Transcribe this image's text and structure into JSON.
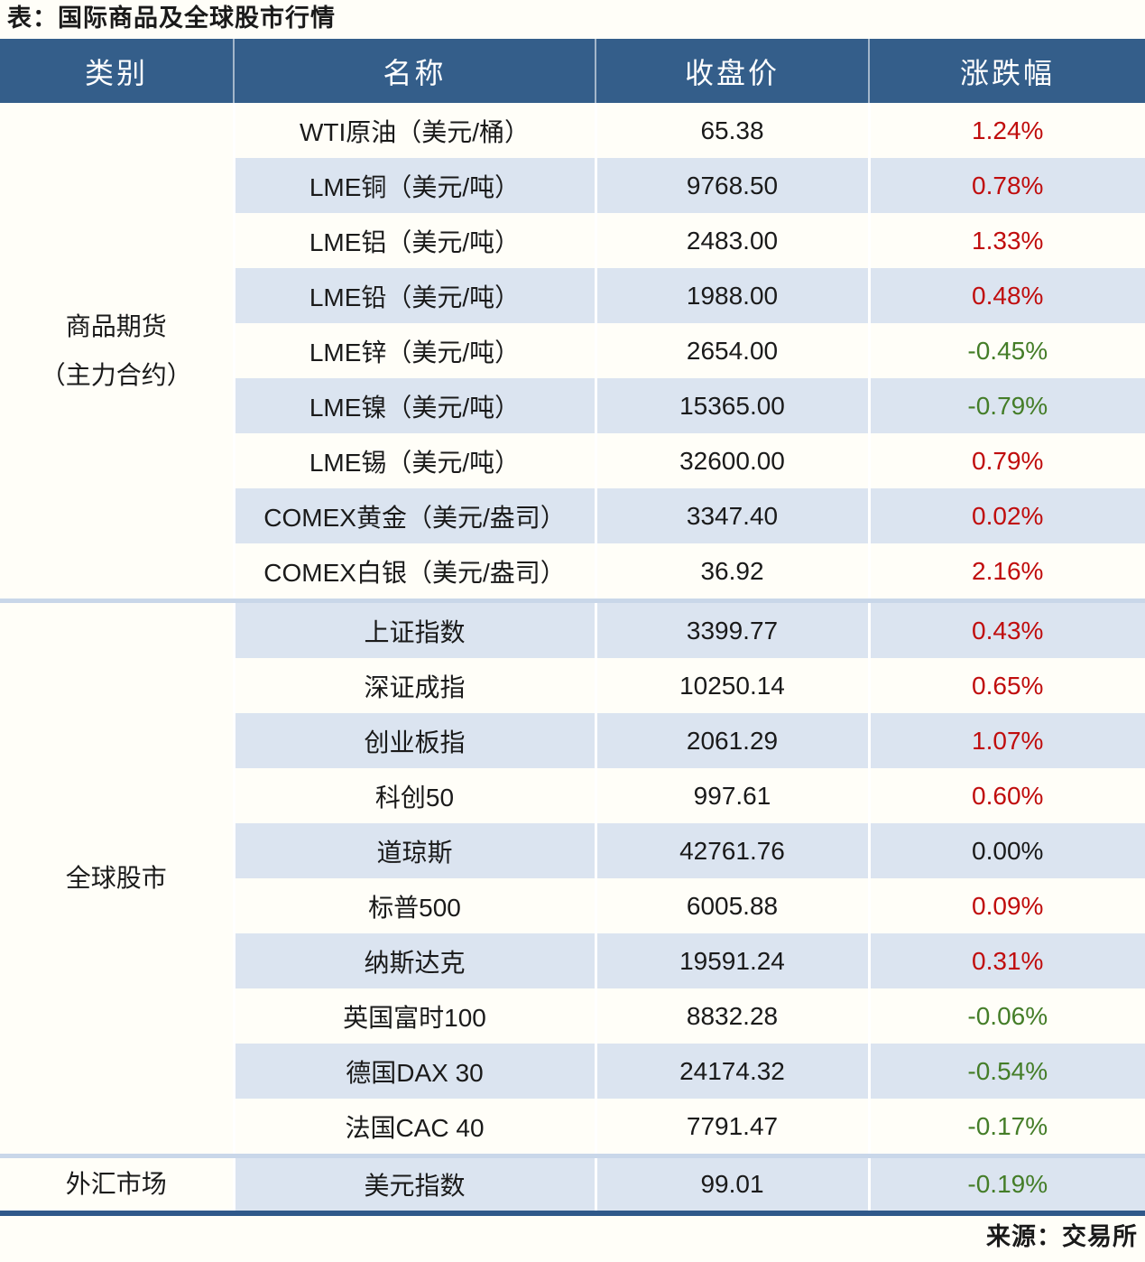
{
  "title": "表：国际商品及全球股市行情",
  "source": "来源：交易所",
  "colors": {
    "page_bg": "#fffef8",
    "header_bg": "#345e8a",
    "header_text": "#ffffff",
    "row_light": "#fffef8",
    "row_alt": "#dbe4f0",
    "sep": "#c9d7e9",
    "bottom_border": "#30598a",
    "text": "#1a1a1a",
    "up": "#c00d0d",
    "down": "#447d28",
    "flat": "#1a1a1a"
  },
  "chart_data": {
    "type": "table",
    "title": "表：国际商品及全球股市行情",
    "source": "来源：交易所",
    "columns": [
      "类别",
      "名称",
      "收盘价",
      "涨跌幅"
    ],
    "sections": [
      {
        "category": "商品期货（主力合约）",
        "category_lines": [
          "商品期货",
          "（主力合约）"
        ],
        "rows": [
          {
            "name": "WTI原油（美元/桶）",
            "close": "65.38",
            "change": "1.24%",
            "direction": "up"
          },
          {
            "name": "LME铜（美元/吨）",
            "close": "9768.50",
            "change": "0.78%",
            "direction": "up"
          },
          {
            "name": "LME铝（美元/吨）",
            "close": "2483.00",
            "change": "1.33%",
            "direction": "up"
          },
          {
            "name": "LME铅（美元/吨）",
            "close": "1988.00",
            "change": "0.48%",
            "direction": "up"
          },
          {
            "name": "LME锌（美元/吨）",
            "close": "2654.00",
            "change": "-0.45%",
            "direction": "down"
          },
          {
            "name": "LME镍（美元/吨）",
            "close": "15365.00",
            "change": "-0.79%",
            "direction": "down"
          },
          {
            "name": "LME锡（美元/吨）",
            "close": "32600.00",
            "change": "0.79%",
            "direction": "up"
          },
          {
            "name": "COMEX黄金（美元/盎司）",
            "close": "3347.40",
            "change": "0.02%",
            "direction": "up"
          },
          {
            "name": "COMEX白银（美元/盎司）",
            "close": "36.92",
            "change": "2.16%",
            "direction": "up"
          }
        ]
      },
      {
        "category": "全球股市",
        "category_lines": [
          "全球股市"
        ],
        "rows": [
          {
            "name": "上证指数",
            "close": "3399.77",
            "change": "0.43%",
            "direction": "up"
          },
          {
            "name": "深证成指",
            "close": "10250.14",
            "change": "0.65%",
            "direction": "up"
          },
          {
            "name": "创业板指",
            "close": "2061.29",
            "change": "1.07%",
            "direction": "up"
          },
          {
            "name": "科创50",
            "close": "997.61",
            "change": "0.60%",
            "direction": "up"
          },
          {
            "name": "道琼斯",
            "close": "42761.76",
            "change": "0.00%",
            "direction": "flat"
          },
          {
            "name": "标普500",
            "close": "6005.88",
            "change": "0.09%",
            "direction": "up"
          },
          {
            "name": "纳斯达克",
            "close": "19591.24",
            "change": "0.31%",
            "direction": "up"
          },
          {
            "name": "英国富时100",
            "close": "8832.28",
            "change": "-0.06%",
            "direction": "down"
          },
          {
            "name": "德国DAX 30",
            "close": "24174.32",
            "change": "-0.54%",
            "direction": "down"
          },
          {
            "name": "法国CAC 40",
            "close": "7791.47",
            "change": "-0.17%",
            "direction": "down"
          }
        ]
      },
      {
        "category": "外汇市场",
        "category_lines": [
          "外汇市场"
        ],
        "rows": [
          {
            "name": "美元指数",
            "close": "99.01",
            "change": "-0.19%",
            "direction": "down"
          }
        ]
      }
    ]
  }
}
